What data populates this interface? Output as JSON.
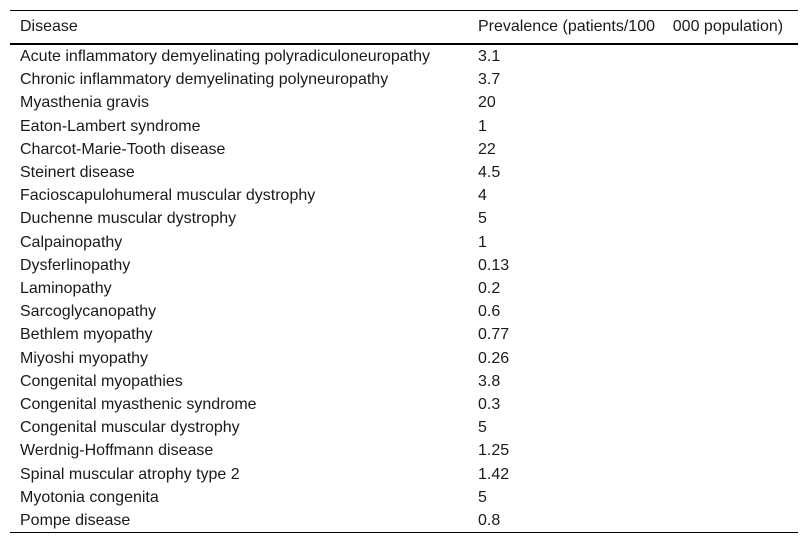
{
  "table": {
    "columns": [
      "Disease",
      "Prevalence (patients/100    000 population)"
    ],
    "rows": [
      {
        "disease": "Acute inflammatory demyelinating polyradiculoneuropathy",
        "prevalence": "3.1"
      },
      {
        "disease": "Chronic inflammatory demyelinating polyneuropathy",
        "prevalence": "3.7"
      },
      {
        "disease": "Myasthenia gravis",
        "prevalence": "20"
      },
      {
        "disease": "Eaton-Lambert syndrome",
        "prevalence": "1"
      },
      {
        "disease": "Charcot-Marie-Tooth disease",
        "prevalence": "22"
      },
      {
        "disease": "Steinert disease",
        "prevalence": "4.5"
      },
      {
        "disease": "Facioscapulohumeral muscular dystrophy",
        "prevalence": "4"
      },
      {
        "disease": "Duchenne muscular dystrophy",
        "prevalence": "5"
      },
      {
        "disease": "Calpainopathy",
        "prevalence": "1"
      },
      {
        "disease": "Dysferlinopathy",
        "prevalence": "0.13"
      },
      {
        "disease": "Laminopathy",
        "prevalence": "0.2"
      },
      {
        "disease": "Sarcoglycanopathy",
        "prevalence": "0.6"
      },
      {
        "disease": "Bethlem myopathy",
        "prevalence": "0.77"
      },
      {
        "disease": "Miyoshi myopathy",
        "prevalence": "0.26"
      },
      {
        "disease": "Congenital myopathies",
        "prevalence": "3.8"
      },
      {
        "disease": "Congenital myasthenic syndrome",
        "prevalence": "0.3"
      },
      {
        "disease": "Congenital muscular dystrophy",
        "prevalence": "5"
      },
      {
        "disease": "Werdnig-Hoffmann disease",
        "prevalence": "1.25"
      },
      {
        "disease": "Spinal muscular atrophy type 2",
        "prevalence": "1.42"
      },
      {
        "disease": "Myotonia congenita",
        "prevalence": "5"
      },
      {
        "disease": "Pompe disease",
        "prevalence": "0.8"
      }
    ]
  }
}
